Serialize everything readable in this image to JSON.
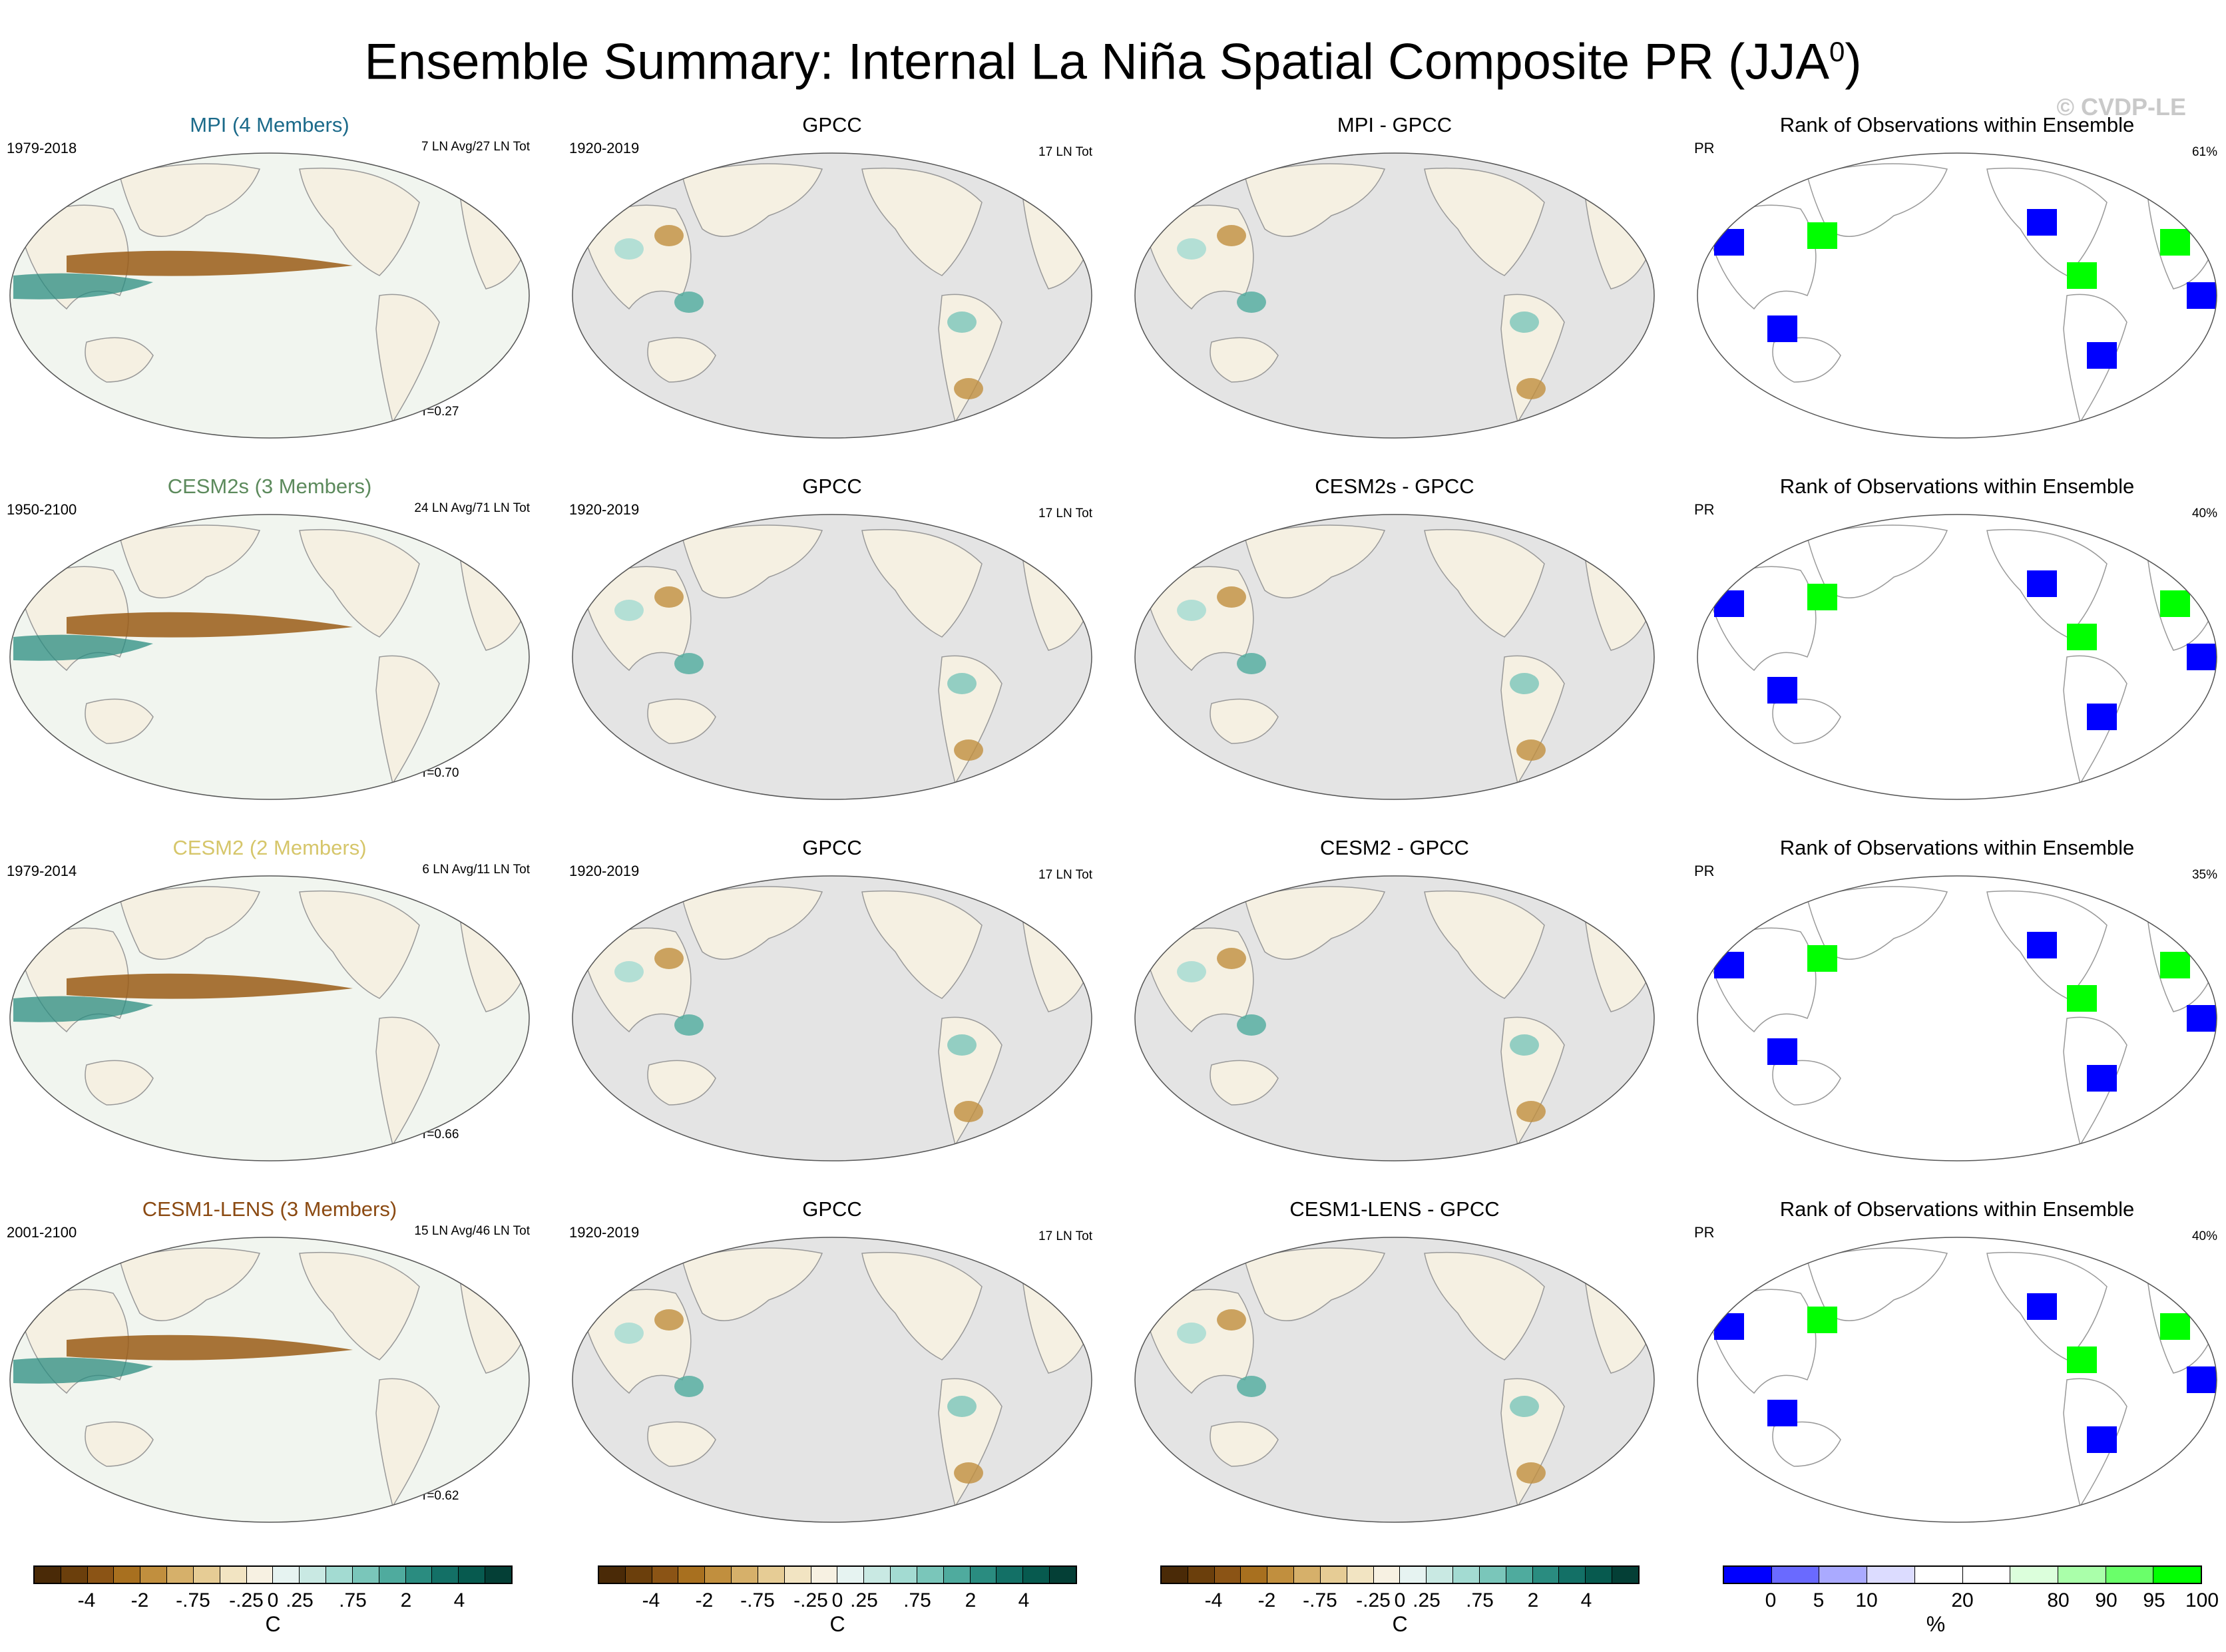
{
  "title": "Ensemble Summary: Internal La Niña Spatial Composite PR (JJA",
  "title_superscript": "0",
  "title_close": ")",
  "watermark": "© CVDP-LE",
  "rows": [
    {
      "model": {
        "title": "MPI (4 Members)",
        "color": "#1b6a8a",
        "years": "1979-2018",
        "events": "7 LN Avg/27 LN Tot",
        "corr": "r=0.27"
      },
      "obs": {
        "title": "GPCC",
        "years": "1920-2019",
        "events": "17 LN Tot"
      },
      "diff": {
        "title": "MPI - GPCC"
      },
      "rank": {
        "title": "Rank of Observations within Ensemble",
        "var": "PR",
        "pct": "61%"
      }
    },
    {
      "model": {
        "title": "CESM2s (3 Members)",
        "color": "#5c8a5c",
        "years": "1950-2100",
        "events": "24 LN Avg/71 LN Tot",
        "corr": "r=0.70"
      },
      "obs": {
        "title": "GPCC",
        "years": "1920-2019",
        "events": "17 LN Tot"
      },
      "diff": {
        "title": "CESM2s - GPCC"
      },
      "rank": {
        "title": "Rank of Observations within Ensemble",
        "var": "PR",
        "pct": "40%"
      }
    },
    {
      "model": {
        "title": "CESM2 (2 Members)",
        "color": "#d6c66a",
        "years": "1979-2014",
        "events": "6 LN Avg/11 LN Tot",
        "corr": "r=0.66"
      },
      "obs": {
        "title": "GPCC",
        "years": "1920-2019",
        "events": "17 LN Tot"
      },
      "diff": {
        "title": "CESM2 - GPCC"
      },
      "rank": {
        "title": "Rank of Observations within Ensemble",
        "var": "PR",
        "pct": "35%"
      }
    },
    {
      "model": {
        "title": "CESM1-LENS (3 Members)",
        "color": "#8b4a12",
        "years": "2001-2100",
        "events": "15 LN Avg/46 LN Tot",
        "corr": "r=0.62"
      },
      "obs": {
        "title": "GPCC",
        "years": "1920-2019",
        "events": "17 LN Tot"
      },
      "diff": {
        "title": "CESM1-LENS - GPCC"
      },
      "rank": {
        "title": "Rank of Observations within Ensemble",
        "var": "PR",
        "pct": "40%"
      }
    }
  ],
  "brbg_colorbar": {
    "colors": [
      "#4a2a07",
      "#6b3f0c",
      "#8b5415",
      "#a8701f",
      "#c18f3e",
      "#d6b06a",
      "#e6cc95",
      "#f2e4c2",
      "#f7f1e2",
      "#e6f3f1",
      "#c9e9e3",
      "#a3dbd2",
      "#7ac6ba",
      "#4fab9e",
      "#2a8c80",
      "#137066",
      "#075a4f",
      "#043f36"
    ],
    "ticks": [
      "-4",
      "-2",
      "-.75",
      "-.25",
      "0",
      ".25",
      ".75",
      "2",
      "4"
    ],
    "unit": "C"
  },
  "rank_colorbar": {
    "colors": [
      "#0000ff",
      "#6a6aff",
      "#aaaaff",
      "#dcdcff",
      "#ffffff",
      "#ffffff",
      "#dcffdc",
      "#aaffaa",
      "#6aff6a",
      "#00ff00"
    ],
    "ticks": [
      "0",
      "5",
      "10",
      "20",
      "80",
      "90",
      "95",
      "100"
    ],
    "unit": "%"
  }
}
